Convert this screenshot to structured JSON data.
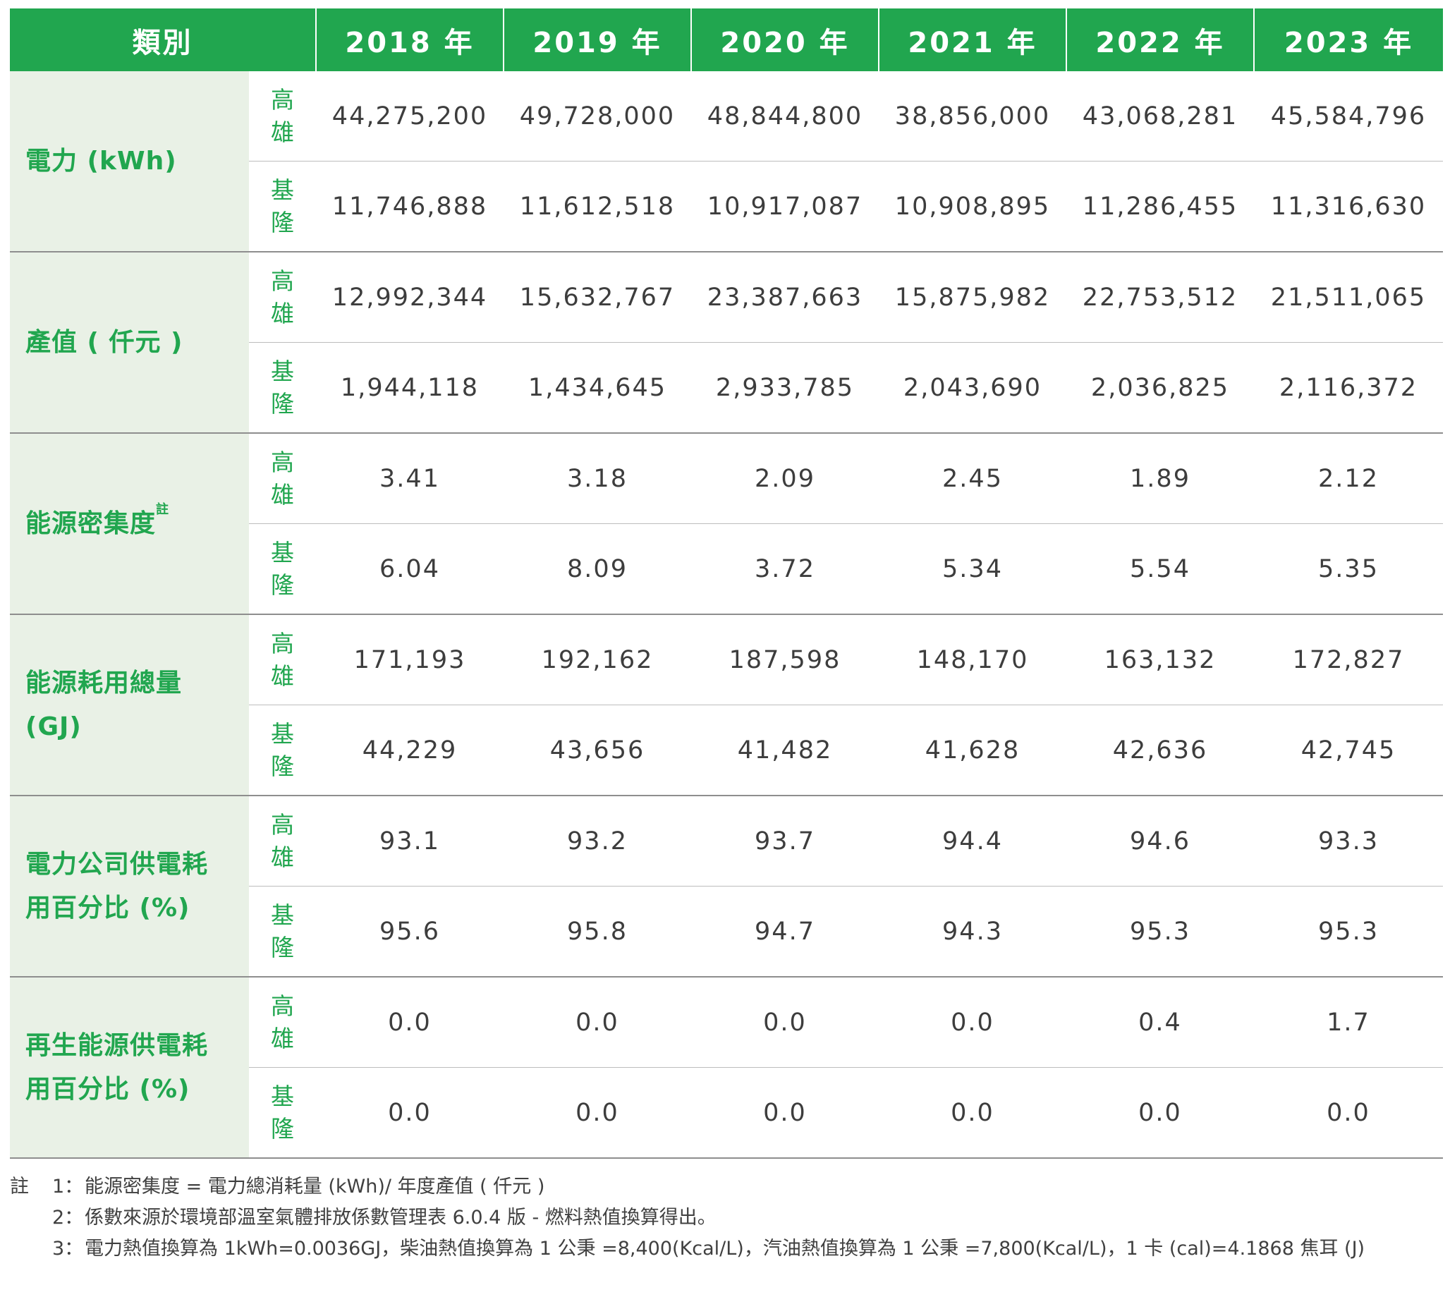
{
  "header": {
    "category": "類別",
    "years": [
      "2018 年",
      "2019 年",
      "2020 年",
      "2021 年",
      "2022 年",
      "2023 年"
    ]
  },
  "sites": {
    "kaohsiung": [
      "高",
      "雄"
    ],
    "keelung": [
      "基",
      "隆"
    ]
  },
  "rows": [
    {
      "category_lines": [
        "電力 (kWh)"
      ],
      "sup": "",
      "kaohsiung": [
        "44,275,200",
        "49,728,000",
        "48,844,800",
        "38,856,000",
        "43,068,281",
        "45,584,796"
      ],
      "keelung": [
        "11,746,888",
        "11,612,518",
        "10,917,087",
        "10,908,895",
        "11,286,455",
        "11,316,630"
      ]
    },
    {
      "category_lines": [
        "產值 ( 仟元 )"
      ],
      "sup": "",
      "kaohsiung": [
        "12,992,344",
        "15,632,767",
        "23,387,663",
        "15,875,982",
        "22,753,512",
        "21,511,065"
      ],
      "keelung": [
        "1,944,118",
        "1,434,645",
        "2,933,785",
        "2,043,690",
        "2,036,825",
        "2,116,372"
      ]
    },
    {
      "category_lines": [
        "能源密集度"
      ],
      "sup": "註",
      "kaohsiung": [
        "3.41",
        "3.18",
        "2.09",
        "2.45",
        "1.89",
        "2.12"
      ],
      "keelung": [
        "6.04",
        "8.09",
        "3.72",
        "5.34",
        "5.54",
        "5.35"
      ]
    },
    {
      "category_lines": [
        "能源耗用總量",
        "(GJ)"
      ],
      "sup": "",
      "kaohsiung": [
        "171,193",
        "192,162",
        "187,598",
        "148,170",
        "163,132",
        "172,827"
      ],
      "keelung": [
        "44,229",
        "43,656",
        "41,482",
        "41,628",
        "42,636",
        "42,745"
      ]
    },
    {
      "category_lines": [
        "電力公司供電耗",
        "用百分比 (%)"
      ],
      "sup": "",
      "kaohsiung": [
        "93.1",
        "93.2",
        "93.7",
        "94.4",
        "94.6",
        "93.3"
      ],
      "keelung": [
        "95.6",
        "95.8",
        "94.7",
        "94.3",
        "95.3",
        "95.3"
      ]
    },
    {
      "category_lines": [
        "再生能源供電耗",
        "用百分比 (%)"
      ],
      "sup": "",
      "kaohsiung": [
        "0.0",
        "0.0",
        "0.0",
        "0.0",
        "0.4",
        "1.7"
      ],
      "keelung": [
        "0.0",
        "0.0",
        "0.0",
        "0.0",
        "0.0",
        "0.0"
      ]
    }
  ],
  "notes": {
    "mark": "註",
    "items": [
      {
        "num": "1：",
        "text": "能源密集度 = 電力總消耗量 (kWh)/ 年度產值 ( 仟元 )"
      },
      {
        "num": "2：",
        "text": "係數來源於環境部溫室氣體排放係數管理表 6.0.4 版 - 燃料熱值換算得出。"
      },
      {
        "num": "3：",
        "text": "電力熱值換算為 1kWh=0.0036GJ，柴油熱值換算為 1 公秉 =8,400(Kcal/L)，汽油熱值換算為 1 公秉 =7,800(Kcal/L)，1 卡 (cal)=4.1868 焦耳 (J)"
      }
    ]
  },
  "colors": {
    "header_green": "#21a64f",
    "category_bg": "#e9f1e6",
    "text_green": "#21a64f",
    "value_text": "#3d3d3d"
  }
}
